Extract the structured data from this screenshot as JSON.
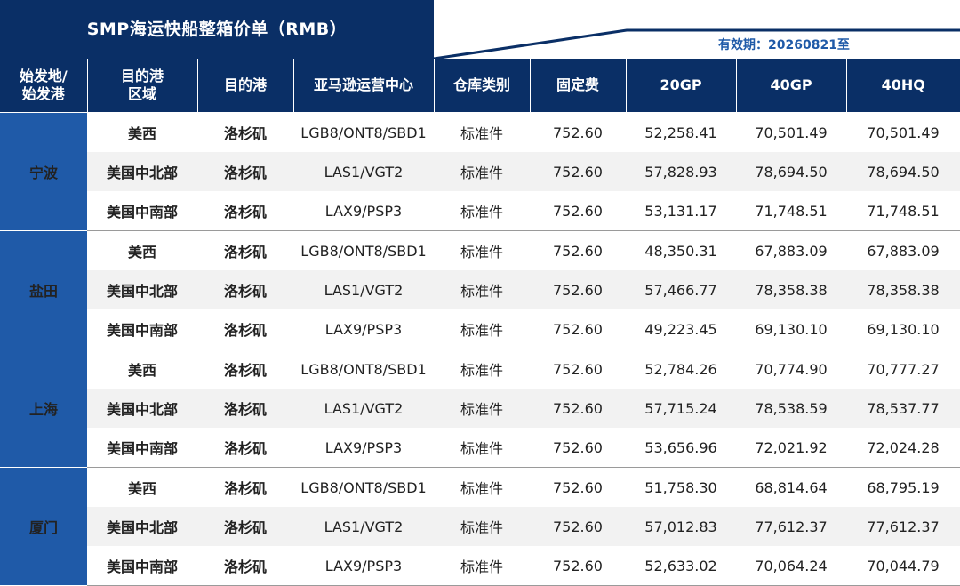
{
  "title": "SMP海运快船整箱价单（RMB）",
  "validity": "有效期：20260821至",
  "headers": {
    "origin": "始发地/\n始发港",
    "region": "目的港\n区域",
    "port": "目的港",
    "amazon_center": "亚马逊运营中心",
    "warehouse_type": "仓库类别",
    "fixed_fee": "固定费",
    "gp20": "20GP",
    "gp40": "40GP",
    "hq40": "40HQ"
  },
  "groups": [
    {
      "origin": "宁波",
      "rows": [
        {
          "region": "美西",
          "port": "洛杉矶",
          "center": "LGB8/ONT8/SBD1",
          "type": "标准件",
          "fixed": "752.60",
          "gp20": "52,258.41",
          "gp40": "70,501.49",
          "hq40": "70,501.49"
        },
        {
          "region": "美国中北部",
          "port": "洛杉矶",
          "center": "LAS1/VGT2",
          "type": "标准件",
          "fixed": "752.60",
          "gp20": "57,828.93",
          "gp40": "78,694.50",
          "hq40": "78,694.50"
        },
        {
          "region": "美国中南部",
          "port": "洛杉矶",
          "center": "LAX9/PSP3",
          "type": "标准件",
          "fixed": "752.60",
          "gp20": "53,131.17",
          "gp40": "71,748.51",
          "hq40": "71,748.51"
        }
      ]
    },
    {
      "origin": "盐田",
      "rows": [
        {
          "region": "美西",
          "port": "洛杉矶",
          "center": "LGB8/ONT8/SBD1",
          "type": "标准件",
          "fixed": "752.60",
          "gp20": "48,350.31",
          "gp40": "67,883.09",
          "hq40": "67,883.09"
        },
        {
          "region": "美国中北部",
          "port": "洛杉矶",
          "center": "LAS1/VGT2",
          "type": "标准件",
          "fixed": "752.60",
          "gp20": "57,466.77",
          "gp40": "78,358.38",
          "hq40": "78,358.38"
        },
        {
          "region": "美国中南部",
          "port": "洛杉矶",
          "center": "LAX9/PSP3",
          "type": "标准件",
          "fixed": "752.60",
          "gp20": "49,223.45",
          "gp40": "69,130.10",
          "hq40": "69,130.10"
        }
      ]
    },
    {
      "origin": "上海",
      "rows": [
        {
          "region": "美西",
          "port": "洛杉矶",
          "center": "LGB8/ONT8/SBD1",
          "type": "标准件",
          "fixed": "752.60",
          "gp20": "52,784.26",
          "gp40": "70,774.90",
          "hq40": "70,777.27"
        },
        {
          "region": "美国中北部",
          "port": "洛杉矶",
          "center": "LAS1/VGT2",
          "type": "标准件",
          "fixed": "752.60",
          "gp20": "57,715.24",
          "gp40": "78,538.59",
          "hq40": "78,537.77"
        },
        {
          "region": "美国中南部",
          "port": "洛杉矶",
          "center": "LAX9/PSP3",
          "type": "标准件",
          "fixed": "752.60",
          "gp20": "53,656.96",
          "gp40": "72,021.92",
          "hq40": "72,024.28"
        }
      ]
    },
    {
      "origin": "厦门",
      "rows": [
        {
          "region": "美西",
          "port": "洛杉矶",
          "center": "LGB8/ONT8/SBD1",
          "type": "标准件",
          "fixed": "752.60",
          "gp20": "51,758.30",
          "gp40": "68,814.64",
          "hq40": "68,795.19"
        },
        {
          "region": "美国中北部",
          "port": "洛杉矶",
          "center": "LAS1/VGT2",
          "type": "标准件",
          "fixed": "752.60",
          "gp20": "57,012.83",
          "gp40": "77,612.37",
          "hq40": "77,612.37"
        },
        {
          "region": "美国中南部",
          "port": "洛杉矶",
          "center": "LAX9/PSP3",
          "type": "标准件",
          "fixed": "752.60",
          "gp20": "52,633.02",
          "gp40": "70,064.24",
          "hq40": "70,044.79"
        }
      ]
    }
  ],
  "colors": {
    "header_bg": "#0a2f66",
    "origin_bg": "#1f5aa8",
    "accent_text": "#1f5aa8",
    "row_alt_bg": "#f2f2f2"
  }
}
